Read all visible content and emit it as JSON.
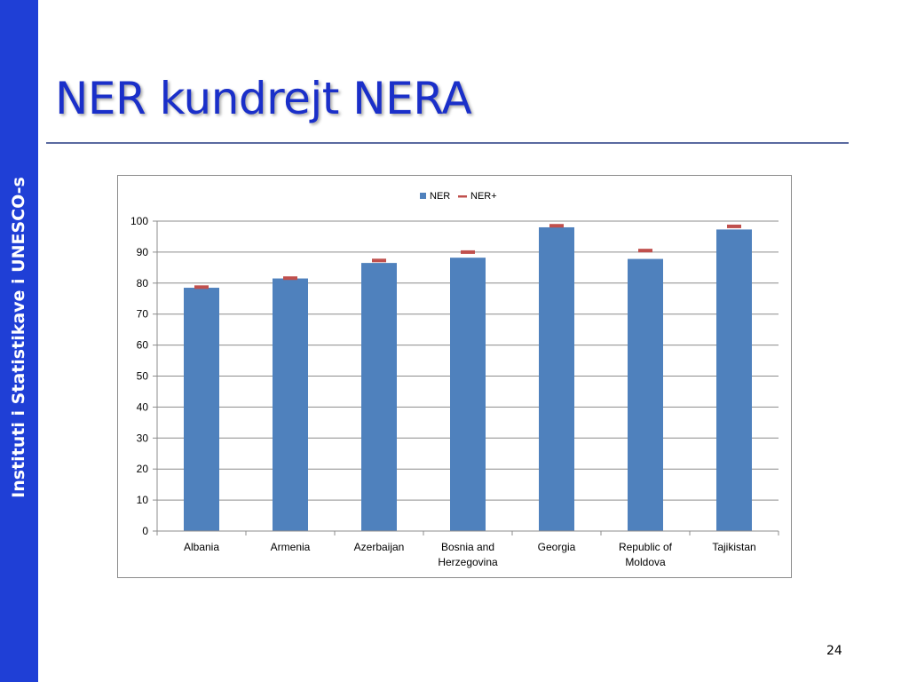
{
  "sidebar": {
    "label": "Instituti i Statistikave i UNESCO-s",
    "color": "#1f3fd6"
  },
  "slide": {
    "title": "NER kundrejt NERA",
    "page_number": "24",
    "title_color": "#1a2fc9"
  },
  "chart_data": {
    "type": "bar",
    "categories": [
      "Albania",
      "Armenia",
      "Azerbaijan",
      "Bosnia and Herzegovina",
      "Georgia",
      "Republic of Moldova",
      "Tajikistan"
    ],
    "category_lines": [
      [
        "Albania"
      ],
      [
        "Armenia"
      ],
      [
        "Azerbaijan"
      ],
      [
        "Bosnia and",
        "Herzegovina"
      ],
      [
        "Georgia"
      ],
      [
        "Republic of",
        "Moldova"
      ],
      [
        "Tajikistan"
      ]
    ],
    "series": [
      {
        "name": "NER",
        "kind": "bar",
        "color": "#4f81bd",
        "values": [
          78.5,
          81.5,
          86.5,
          88.2,
          98.0,
          87.8,
          97.3
        ]
      },
      {
        "name": "NER+",
        "kind": "marker-dash",
        "color": "#c0504d",
        "values": [
          78.7,
          81.6,
          87.3,
          90.0,
          98.5,
          90.5,
          98.3
        ]
      }
    ],
    "ylim": [
      0,
      100
    ],
    "yticks": [
      0,
      10,
      20,
      30,
      40,
      50,
      60,
      70,
      80,
      90,
      100
    ],
    "grid": true,
    "legend_position": "top-center"
  }
}
